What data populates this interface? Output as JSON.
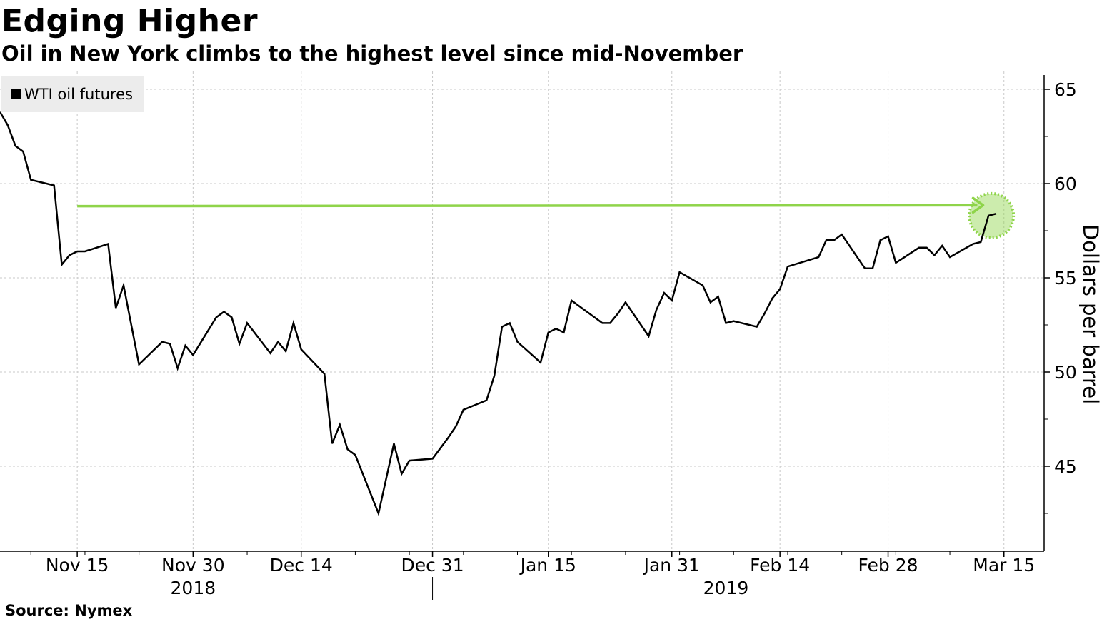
{
  "title": "Edging Higher",
  "subtitle": "Oil in New York climbs to the highest level since mid-November",
  "source": "Source: Nymex",
  "colors": {
    "line": "#000000",
    "highlight": "#8fd44a",
    "grid": "#c8c8c8",
    "legend_bg": "#ececec"
  },
  "chart_data": {
    "type": "line",
    "title": "Edging Higher",
    "subtitle": "Oil in New York climbs to the highest level since mid-November",
    "ylabel": "Dollars per barrel",
    "ylim": [
      41,
      66
    ],
    "xlim": [
      "2018-11-05",
      "2019-03-19"
    ],
    "yticks": [
      45,
      50,
      55,
      60,
      65
    ],
    "xticks": [
      {
        "date": "2018-11-15",
        "label": "Nov 15"
      },
      {
        "date": "2018-11-30",
        "label": "Nov 30"
      },
      {
        "date": "2018-12-14",
        "label": "Dec 14"
      },
      {
        "date": "2018-12-31",
        "label": "Dec 31"
      },
      {
        "date": "2019-01-15",
        "label": "Jan 15"
      },
      {
        "date": "2019-01-31",
        "label": "Jan 31"
      },
      {
        "date": "2019-02-14",
        "label": "Feb 14"
      },
      {
        "date": "2019-02-28",
        "label": "Feb 28"
      },
      {
        "date": "2019-03-15",
        "label": "Mar 15"
      }
    ],
    "year_labels": [
      {
        "label": "2018",
        "date": "2018-11-30"
      },
      {
        "label": "2019",
        "date": "2019-02-07"
      }
    ],
    "year_divider_date": "2018-12-31",
    "grid": true,
    "legend_position": "top-left",
    "series": [
      {
        "name": "WTI oil futures",
        "points": [
          [
            "2018-11-05",
            63.8
          ],
          [
            "2018-11-06",
            63.1
          ],
          [
            "2018-11-07",
            62.0
          ],
          [
            "2018-11-08",
            61.7
          ],
          [
            "2018-11-09",
            60.2
          ],
          [
            "2018-11-12",
            59.9
          ],
          [
            "2018-11-13",
            55.7
          ],
          [
            "2018-11-14",
            56.2
          ],
          [
            "2018-11-15",
            56.4
          ],
          [
            "2018-11-16",
            56.4
          ],
          [
            "2018-11-19",
            56.8
          ],
          [
            "2018-11-20",
            53.4
          ],
          [
            "2018-11-21",
            54.6
          ],
          [
            "2018-11-23",
            50.4
          ],
          [
            "2018-11-26",
            51.6
          ],
          [
            "2018-11-27",
            51.5
          ],
          [
            "2018-11-28",
            50.2
          ],
          [
            "2018-11-29",
            51.4
          ],
          [
            "2018-11-30",
            50.9
          ],
          [
            "2018-12-03",
            52.9
          ],
          [
            "2018-12-04",
            53.2
          ],
          [
            "2018-12-05",
            52.9
          ],
          [
            "2018-12-06",
            51.5
          ],
          [
            "2018-12-07",
            52.6
          ],
          [
            "2018-12-10",
            51.0
          ],
          [
            "2018-12-11",
            51.6
          ],
          [
            "2018-12-12",
            51.1
          ],
          [
            "2018-12-13",
            52.6
          ],
          [
            "2018-12-14",
            51.2
          ],
          [
            "2018-12-17",
            49.9
          ],
          [
            "2018-12-18",
            46.2
          ],
          [
            "2018-12-19",
            47.2
          ],
          [
            "2018-12-20",
            45.9
          ],
          [
            "2018-12-21",
            45.6
          ],
          [
            "2018-12-24",
            42.5
          ],
          [
            "2018-12-26",
            46.2
          ],
          [
            "2018-12-27",
            44.6
          ],
          [
            "2018-12-28",
            45.3
          ],
          [
            "2018-12-31",
            45.4
          ],
          [
            "2019-01-02",
            46.5
          ],
          [
            "2019-01-03",
            47.1
          ],
          [
            "2019-01-04",
            48.0
          ],
          [
            "2019-01-07",
            48.5
          ],
          [
            "2019-01-08",
            49.8
          ],
          [
            "2019-01-09",
            52.4
          ],
          [
            "2019-01-10",
            52.6
          ],
          [
            "2019-01-11",
            51.6
          ],
          [
            "2019-01-14",
            50.5
          ],
          [
            "2019-01-15",
            52.1
          ],
          [
            "2019-01-16",
            52.3
          ],
          [
            "2019-01-17",
            52.1
          ],
          [
            "2019-01-18",
            53.8
          ],
          [
            "2019-01-22",
            52.6
          ],
          [
            "2019-01-23",
            52.6
          ],
          [
            "2019-01-24",
            53.1
          ],
          [
            "2019-01-25",
            53.7
          ],
          [
            "2019-01-28",
            51.9
          ],
          [
            "2019-01-29",
            53.3
          ],
          [
            "2019-01-30",
            54.2
          ],
          [
            "2019-01-31",
            53.8
          ],
          [
            "2019-02-01",
            55.3
          ],
          [
            "2019-02-04",
            54.6
          ],
          [
            "2019-02-05",
            53.7
          ],
          [
            "2019-02-06",
            54.0
          ],
          [
            "2019-02-07",
            52.6
          ],
          [
            "2019-02-08",
            52.7
          ],
          [
            "2019-02-11",
            52.4
          ],
          [
            "2019-02-12",
            53.1
          ],
          [
            "2019-02-13",
            53.9
          ],
          [
            "2019-02-14",
            54.4
          ],
          [
            "2019-02-15",
            55.6
          ],
          [
            "2019-02-19",
            56.1
          ],
          [
            "2019-02-20",
            57.0
          ],
          [
            "2019-02-21",
            57.0
          ],
          [
            "2019-02-22",
            57.3
          ],
          [
            "2019-02-25",
            55.5
          ],
          [
            "2019-02-26",
            55.5
          ],
          [
            "2019-02-27",
            57.0
          ],
          [
            "2019-02-28",
            57.2
          ],
          [
            "2019-03-01",
            55.8
          ],
          [
            "2019-03-04",
            56.6
          ],
          [
            "2019-03-05",
            56.6
          ],
          [
            "2019-03-06",
            56.2
          ],
          [
            "2019-03-07",
            56.7
          ],
          [
            "2019-03-08",
            56.1
          ],
          [
            "2019-03-11",
            56.8
          ],
          [
            "2019-03-12",
            56.9
          ],
          [
            "2019-03-13",
            58.3
          ],
          [
            "2019-03-14",
            58.4
          ]
        ]
      }
    ],
    "annotations": [
      {
        "type": "arrow",
        "from_date": "2018-11-15",
        "to_date": "2019-03-11",
        "value": 58.8,
        "color": "#8fd44a"
      },
      {
        "type": "circle",
        "date": "2019-03-13",
        "value": 58.3,
        "color": "#8fd44a"
      }
    ]
  }
}
